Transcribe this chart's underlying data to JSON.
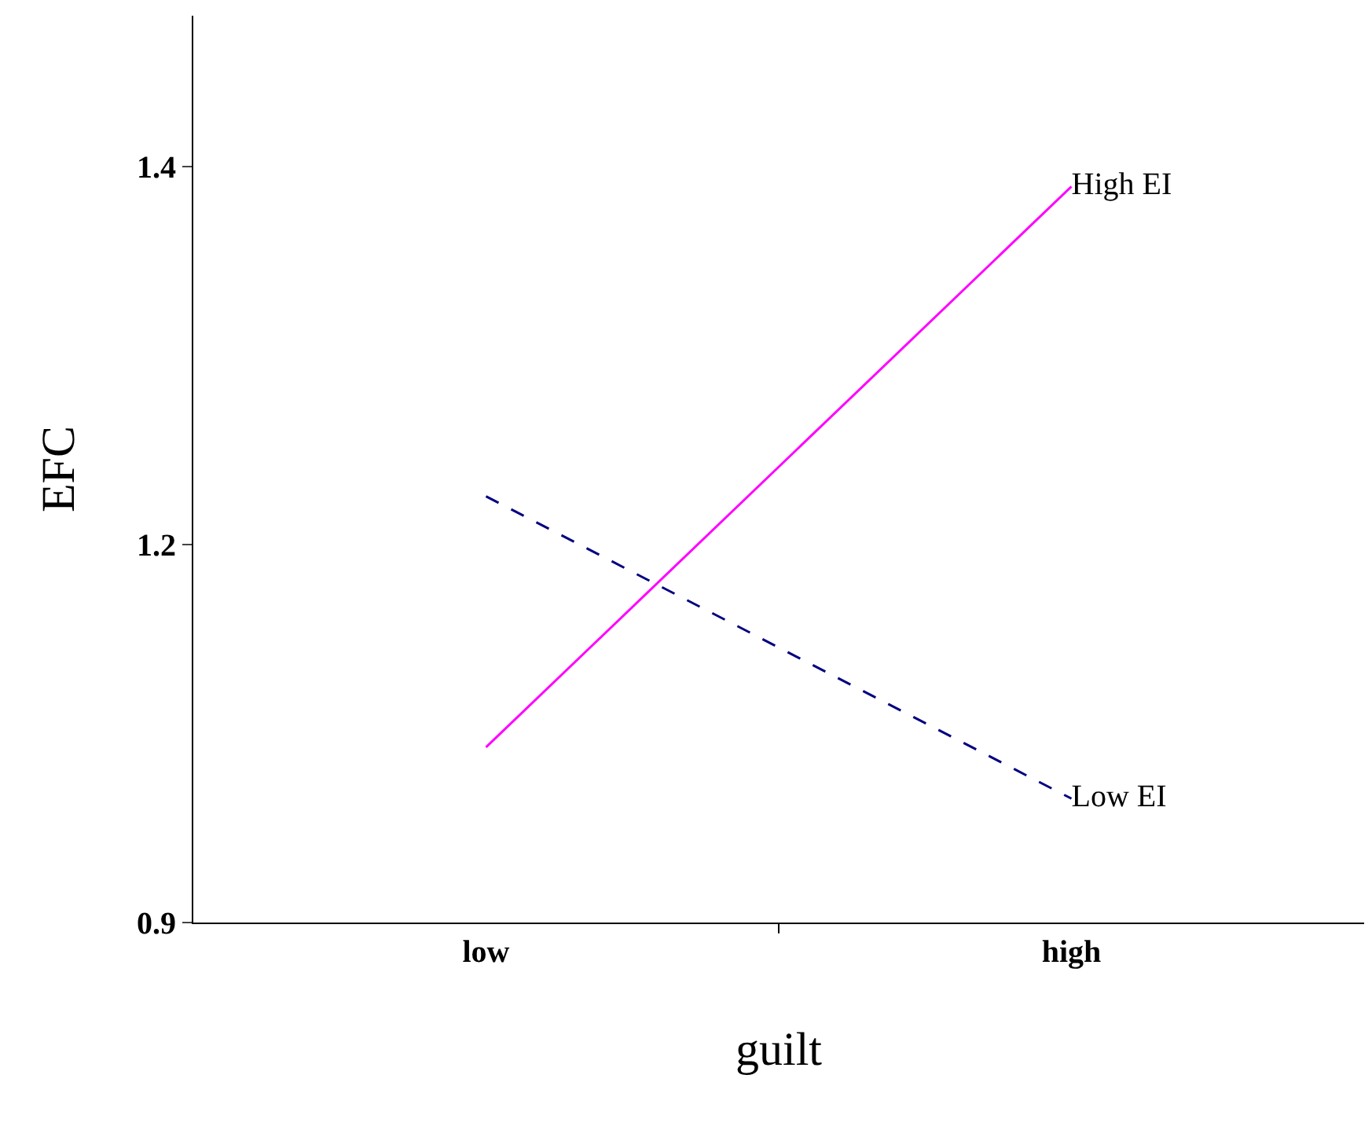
{
  "chart_data": {
    "type": "line",
    "xlabel": "guilt",
    "ylabel": "EFC",
    "categories": [
      "low",
      "high"
    ],
    "series": [
      {
        "name": "High EI",
        "color": "#ff00ff",
        "values": [
          1.016,
          1.387
        ],
        "line_style": "solid"
      },
      {
        "name": "Low EI",
        "color": "#000080",
        "values": [
          1.182,
          0.982
        ],
        "line_style": "dashed"
      }
    ],
    "ylim": [
      0.9,
      1.5
    ],
    "yticks": [
      0.9,
      {
        "value": 1.15,
        "label": "1.2"
      },
      1.4
    ],
    "legend": false,
    "marker": "none"
  }
}
